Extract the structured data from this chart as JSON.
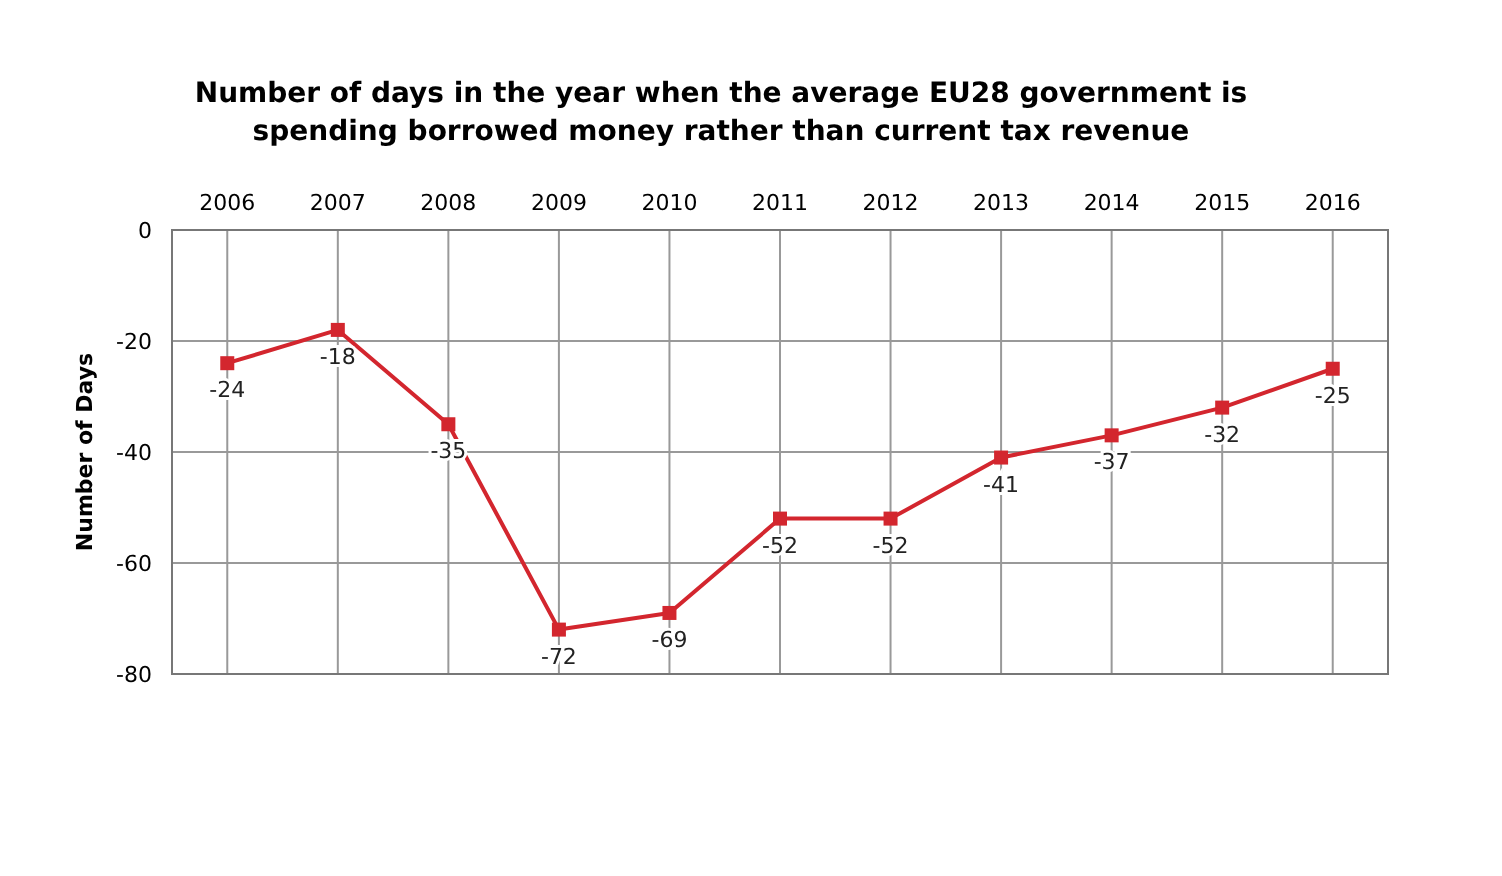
{
  "chart_data": {
    "type": "line",
    "title": "Number of days in the year when the average EU28 government is spending borrowed money rather than current tax revenue",
    "ylabel": "Number of Days",
    "categories": [
      "2006",
      "2007",
      "2008",
      "2009",
      "2010",
      "2011",
      "2012",
      "2013",
      "2014",
      "2015",
      "2016"
    ],
    "series": [
      {
        "color": "#d3262e",
        "values": [
          -24,
          -18,
          -35,
          -72,
          -69,
          -52,
          -52,
          -41,
          -37,
          -32,
          -25
        ]
      }
    ],
    "ylim": [
      -80,
      0
    ],
    "yticks": [
      0,
      -20,
      -40,
      -60,
      -80
    ],
    "grid": true,
    "marker": "square",
    "data_labels": true
  }
}
